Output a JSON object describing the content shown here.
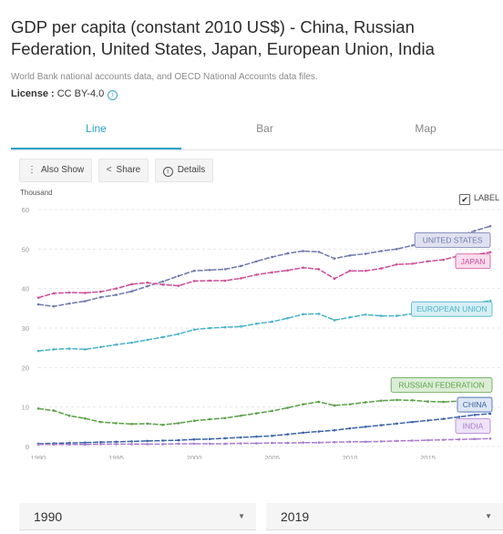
{
  "page": {
    "title": "GDP per capita (constant 2010 US$) - China, Russian Federation, United States, Japan, European Union, India",
    "source": "World Bank national accounts data, and OECD National Accounts data files.",
    "license_label": "License :",
    "license_value": "CC BY-4.0",
    "info_icon": "info-icon"
  },
  "tabs": [
    {
      "label": "Line",
      "active": true
    },
    {
      "label": "Bar",
      "active": false
    },
    {
      "label": "Map",
      "active": false
    }
  ],
  "toolbar": {
    "also_show": "Also Show",
    "share": "Share",
    "details": "Details",
    "icons": {
      "also_show": "vertical-dots-icon",
      "share": "share-icon",
      "details": "info-icon"
    }
  },
  "label_toggle": {
    "label": "LABEL",
    "checked": true
  },
  "range": {
    "start": "1990",
    "end": "2019"
  },
  "colors": {
    "accent": "#2b9fc9",
    "United States": "#6e78ad",
    "Japan": "#d14b96",
    "European Union": "#48b2c9",
    "Russian Federation": "#5aa046",
    "China": "#3c64a8",
    "India": "#a97bd0"
  },
  "chart_data": {
    "type": "line",
    "title": "",
    "xlabel": "",
    "ylabel": "Thousand",
    "xlim": [
      1990,
      2019
    ],
    "ylim": [
      0,
      60
    ],
    "x_ticks": [
      "1990",
      "1995",
      "2000",
      "2005",
      "2010",
      "2015"
    ],
    "y_ticks": [
      "0",
      "10",
      "20",
      "30",
      "40",
      "50",
      "60"
    ],
    "grid": true,
    "x": [
      1990,
      1991,
      1992,
      1993,
      1994,
      1995,
      1996,
      1997,
      1998,
      1999,
      2000,
      2001,
      2002,
      2003,
      2004,
      2005,
      2006,
      2007,
      2008,
      2009,
      2010,
      2011,
      2012,
      2013,
      2014,
      2015,
      2016,
      2017,
      2018,
      2019
    ],
    "series": [
      {
        "name": "UNITED STATES",
        "values": [
          36.0,
          35.5,
          36.2,
          36.8,
          37.8,
          38.4,
          39.3,
          40.6,
          41.8,
          43.2,
          44.5,
          44.7,
          44.9,
          45.7,
          46.9,
          48.0,
          48.9,
          49.5,
          49.3,
          47.6,
          48.4,
          48.8,
          49.5,
          50.0,
          50.9,
          52.1,
          52.6,
          53.4,
          54.6,
          55.8
        ]
      },
      {
        "name": "JAPAN",
        "values": [
          37.7,
          38.8,
          39.0,
          38.9,
          39.2,
          40.0,
          41.1,
          41.5,
          41.0,
          40.7,
          41.9,
          42.0,
          42.0,
          42.6,
          43.5,
          44.1,
          44.6,
          45.3,
          44.9,
          42.5,
          44.5,
          44.5,
          45.1,
          46.1,
          46.3,
          46.9,
          47.3,
          48.3,
          48.6,
          49.2
        ]
      },
      {
        "name": "EUROPEAN UNION",
        "values": [
          24.2,
          24.6,
          24.8,
          24.6,
          25.2,
          25.8,
          26.3,
          27.0,
          27.7,
          28.5,
          29.6,
          30.0,
          30.2,
          30.4,
          31.1,
          31.6,
          32.5,
          33.5,
          33.6,
          32.0,
          32.7,
          33.4,
          33.1,
          33.1,
          33.6,
          34.2,
          34.9,
          35.7,
          36.4,
          36.9
        ]
      },
      {
        "name": "RUSSIAN FEDERATION",
        "values": [
          9.6,
          9.1,
          7.8,
          7.1,
          6.2,
          5.9,
          5.7,
          5.8,
          5.5,
          5.9,
          6.5,
          6.9,
          7.2,
          7.8,
          8.4,
          9.0,
          9.8,
          10.7,
          11.3,
          10.4,
          10.7,
          11.2,
          11.6,
          11.8,
          11.7,
          11.4,
          11.3,
          11.5,
          11.8,
          12.0
        ]
      },
      {
        "name": "CHINA",
        "values": [
          0.7,
          0.8,
          0.9,
          1.0,
          1.1,
          1.2,
          1.3,
          1.4,
          1.5,
          1.6,
          1.8,
          1.9,
          2.1,
          2.3,
          2.5,
          2.7,
          3.1,
          3.5,
          3.8,
          4.1,
          4.6,
          5.0,
          5.4,
          5.8,
          6.2,
          6.6,
          7.0,
          7.5,
          8.0,
          8.3
        ]
      },
      {
        "name": "INDIA",
        "values": [
          0.5,
          0.5,
          0.5,
          0.5,
          0.6,
          0.6,
          0.6,
          0.6,
          0.6,
          0.7,
          0.7,
          0.7,
          0.7,
          0.8,
          0.8,
          0.9,
          0.9,
          1.0,
          1.0,
          1.1,
          1.2,
          1.2,
          1.3,
          1.4,
          1.5,
          1.6,
          1.7,
          1.8,
          1.9,
          2.0
        ]
      }
    ]
  }
}
